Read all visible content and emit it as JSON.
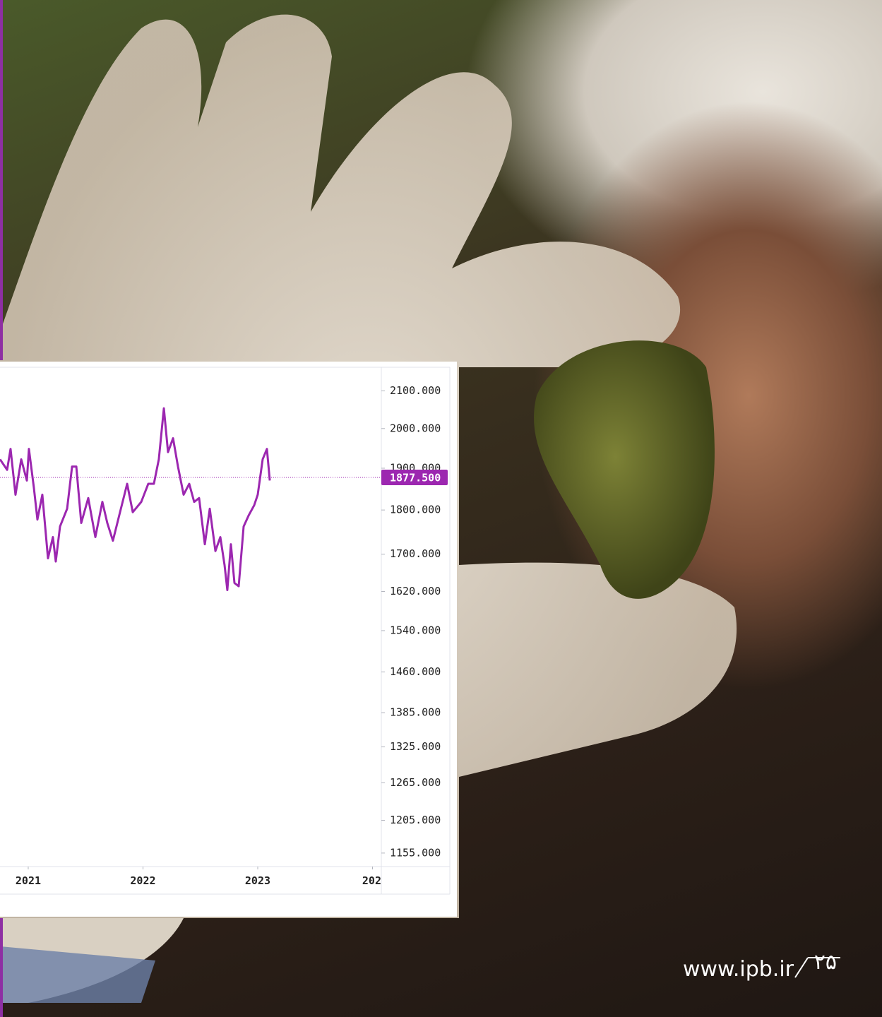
{
  "chart_data": {
    "type": "line",
    "log_y": true,
    "x": [
      2020.754,
      2020.816,
      2020.846,
      2020.889,
      2020.939,
      2020.988,
      2021.006,
      2021.049,
      2021.08,
      2021.123,
      2021.172,
      2021.215,
      2021.24,
      2021.277,
      2021.339,
      2021.382,
      2021.419,
      2021.462,
      2021.523,
      2021.585,
      2021.646,
      2021.689,
      2021.738,
      2021.8,
      2021.862,
      2021.911,
      2021.985,
      2022.046,
      2022.095,
      2022.138,
      2022.182,
      2022.218,
      2022.262,
      2022.305,
      2022.354,
      2022.403,
      2022.446,
      2022.489,
      2022.539,
      2022.582,
      2022.631,
      2022.674,
      2022.711,
      2022.735,
      2022.766,
      2022.797,
      2022.834,
      2022.877,
      2022.92,
      2022.969,
      2023.0,
      2023.043,
      2023.08,
      2023.105
    ],
    "series": [
      {
        "color": "#9c27b0",
        "values": [
          1922,
          1896,
          1948,
          1836,
          1922,
          1870,
          1948,
          1853,
          1778,
          1836,
          1691,
          1738,
          1684,
          1762,
          1803,
          1904,
          1904,
          1770,
          1828,
          1738,
          1819,
          1770,
          1730,
          1795,
          1862,
          1795,
          1819,
          1862,
          1862,
          1922,
          2053,
          1940,
          1975,
          1904,
          1836,
          1862,
          1819,
          1828,
          1722,
          1803,
          1707,
          1738,
          1676,
          1623,
          1722,
          1638,
          1631,
          1762,
          1787,
          1811,
          1836,
          1922,
          1948,
          1870
        ]
      }
    ],
    "last_value": 1877.5,
    "last_value_label": "1877.500",
    "xlim": [
      2020.754,
      2024.077
    ],
    "xticks": [
      2021,
      2022,
      2023,
      {
        "value": 2024,
        "label": "202"
      }
    ],
    "ylim": [
      1135,
      2165
    ],
    "yticks": [
      {
        "value": 2100,
        "label": "2100.000"
      },
      {
        "value": 2000,
        "label": "2000.000"
      },
      {
        "value": 1900,
        "label": "1900.000"
      },
      {
        "value": 1800,
        "label": "1800.000"
      },
      {
        "value": 1700,
        "label": "1700.000"
      },
      {
        "value": 1620,
        "label": "1620.000"
      },
      {
        "value": 1540,
        "label": "1540.000"
      },
      {
        "value": 1460,
        "label": "1460.000"
      },
      {
        "value": 1385,
        "label": "1385.000"
      },
      {
        "value": 1325,
        "label": "1325.000"
      },
      {
        "value": 1265,
        "label": "1265.000"
      },
      {
        "value": 1205,
        "label": "1205.000"
      },
      {
        "value": 1155,
        "label": "1155.000"
      }
    ]
  },
  "page": {
    "url": "www.ipb.ir",
    "number": "۲۵"
  }
}
